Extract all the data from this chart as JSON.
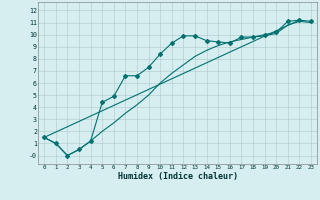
{
  "xlabel": "Humidex (Indice chaleur)",
  "bg_color": "#d6eef0",
  "line_color": "#007070",
  "xlim": [
    -0.5,
    23.5
  ],
  "ylim": [
    -0.7,
    12.7
  ],
  "xticks": [
    0,
    1,
    2,
    3,
    4,
    5,
    6,
    7,
    8,
    9,
    10,
    11,
    12,
    13,
    14,
    15,
    16,
    17,
    18,
    19,
    20,
    21,
    22,
    23
  ],
  "yticks": [
    0,
    1,
    2,
    3,
    4,
    5,
    6,
    7,
    8,
    9,
    10,
    11,
    12
  ],
  "ytick_labels": [
    "-0",
    "1",
    "2",
    "3",
    "4",
    "5",
    "6",
    "7",
    "8",
    "9",
    "10",
    "11",
    "12"
  ],
  "line1_x": [
    0,
    1,
    2,
    3,
    4,
    5,
    6,
    7,
    8,
    9,
    10,
    11,
    12,
    13,
    14,
    15,
    16,
    17,
    18,
    19,
    20,
    21,
    22,
    23
  ],
  "line1_y": [
    1.5,
    1.0,
    0.0,
    0.5,
    1.2,
    4.4,
    4.9,
    6.6,
    6.6,
    7.3,
    8.4,
    9.3,
    9.9,
    9.9,
    9.5,
    9.4,
    9.3,
    9.8,
    9.8,
    10.0,
    10.2,
    11.1,
    11.2,
    11.1
  ],
  "line2_x": [
    0,
    22
  ],
  "line2_y": [
    1.5,
    11.2
  ],
  "line3_x": [
    0,
    1,
    2,
    3,
    4,
    5,
    6,
    7,
    8,
    9,
    10,
    11,
    12,
    13,
    14,
    15,
    16,
    17,
    18,
    19,
    20,
    21,
    22,
    23
  ],
  "line3_y": [
    1.5,
    1.0,
    0.0,
    0.5,
    1.2,
    2.0,
    2.7,
    3.5,
    4.2,
    5.0,
    6.0,
    6.8,
    7.5,
    8.2,
    8.7,
    9.1,
    9.4,
    9.6,
    9.8,
    9.9,
    10.1,
    10.8,
    11.1,
    11.0
  ]
}
